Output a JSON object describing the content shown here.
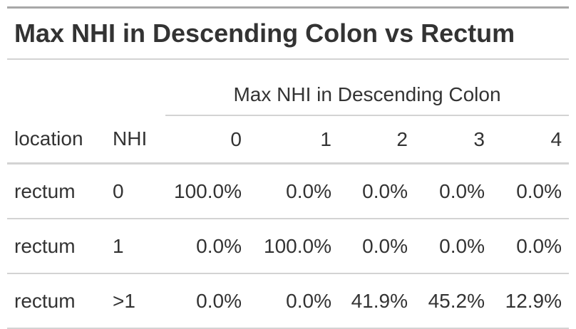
{
  "title": "Max NHI in Descending Colon vs Rectum",
  "table": {
    "spanner": "Max NHI in Descending Colon",
    "columns": [
      "location",
      "NHI",
      "0",
      "1",
      "2",
      "3",
      "4"
    ],
    "rows": [
      [
        "rectum",
        "0",
        "100.0%",
        "0.0%",
        "0.0%",
        "0.0%",
        "0.0%"
      ],
      [
        "rectum",
        "1",
        "0.0%",
        "100.0%",
        "0.0%",
        "0.0%",
        "0.0%"
      ],
      [
        "rectum",
        ">1",
        "0.0%",
        "0.0%",
        "41.9%",
        "45.2%",
        "12.9%"
      ]
    ]
  }
}
